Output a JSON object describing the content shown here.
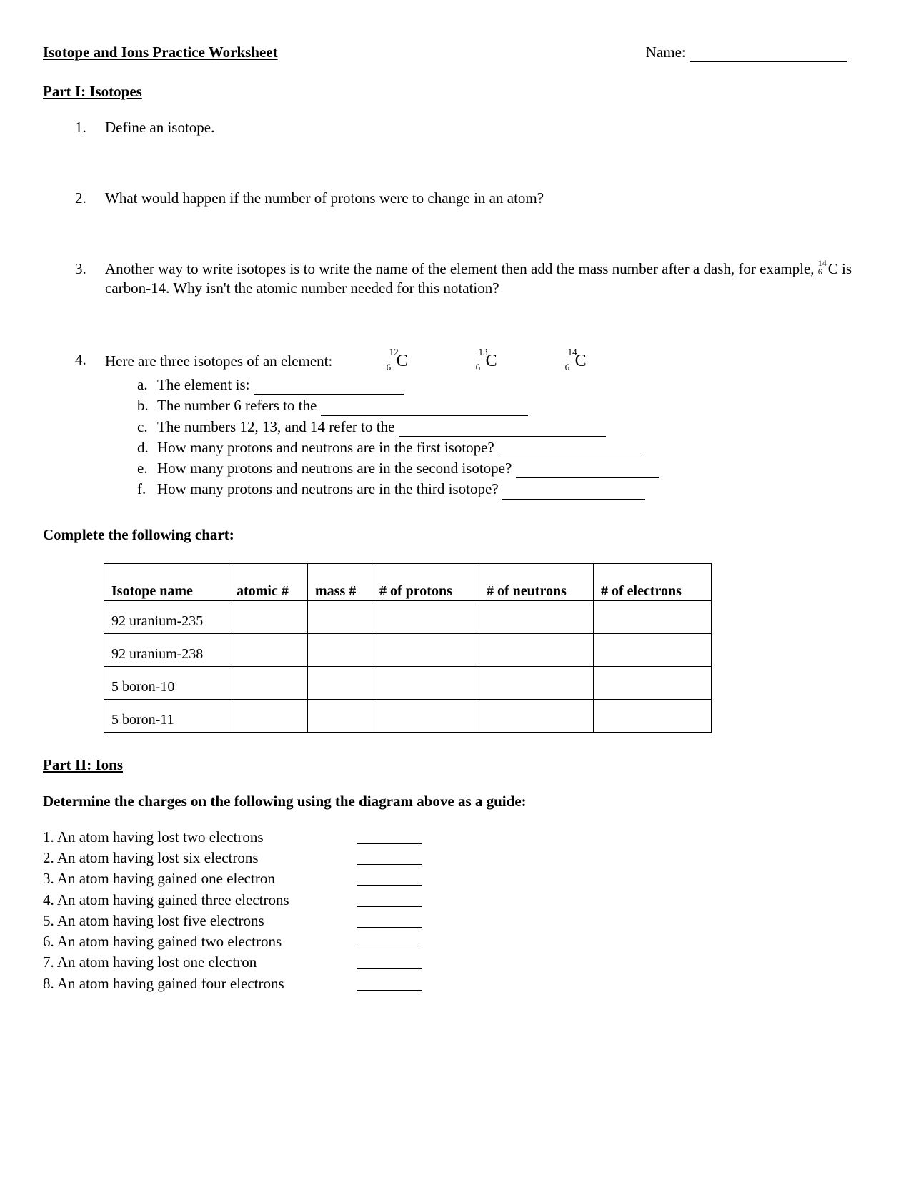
{
  "header": {
    "title": "Isotope and Ions Practice Worksheet",
    "name_label": "Name:"
  },
  "part1": {
    "heading": "Part I:  Isotopes",
    "q1": "Define an isotope.",
    "q2": "What would happen if the number of protons were to change in an atom?",
    "q3_pre": "Another way to write isotopes is to write the name of the element then add the mass number after a dash, for example, ",
    "q3_iso": {
      "sub": "6",
      "sup": "14",
      "symbol": "C"
    },
    "q3_post": " is carbon-14.  Why isn't the atomic number needed for this notation?",
    "q4_intro": "Here are three isotopes of an element:",
    "q4_isotopes": [
      {
        "sub": "6",
        "sup": "12",
        "symbol": "C"
      },
      {
        "sub": "6",
        "sup": "13",
        "symbol": "C"
      },
      {
        "sub": "6",
        "sup": "14",
        "symbol": "C"
      }
    ],
    "q4_sub": {
      "a": "The element is:",
      "b": "The number 6 refers to the",
      "c": "The numbers 12, 13, and 14 refer to the",
      "d": "How many protons and neutrons are in the first isotope?",
      "e": "How many protons and neutrons are in the second isotope?",
      "f": "How many protons and neutrons are in the third isotope?"
    }
  },
  "chart": {
    "instruction": "Complete the following chart:",
    "columns": [
      "Isotope name",
      "atomic #",
      "mass #",
      "# of protons",
      "# of neutrons",
      "# of electrons"
    ],
    "rows": [
      [
        "92 uranium-235",
        "",
        "",
        "",
        "",
        ""
      ],
      [
        "92 uranium-238",
        "",
        "",
        "",
        "",
        ""
      ],
      [
        "5 boron-10",
        "",
        "",
        "",
        "",
        ""
      ],
      [
        "5 boron-11",
        "",
        "",
        "",
        "",
        ""
      ]
    ]
  },
  "part2": {
    "heading": "Part II: Ions",
    "instruction": "Determine the charges on the following using the diagram above as a guide:",
    "items": [
      "1. An atom having lost two electrons",
      "2. An atom having lost six electrons",
      "3. An atom having gained one electron",
      "4. An atom having gained three electrons",
      "5. An atom having lost five electrons",
      "6. An atom having gained two electrons",
      "7. An atom having lost one electron",
      "8. An atom having gained four electrons"
    ]
  }
}
